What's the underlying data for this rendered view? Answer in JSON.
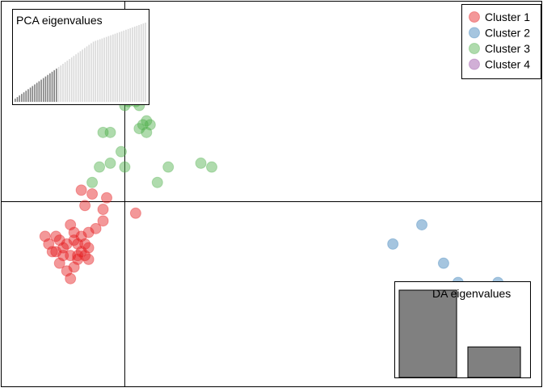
{
  "chart_data": {
    "type": "scatter",
    "subtype": "discriminant-analysis-scatterplot",
    "legend": {
      "placement": "top-right",
      "entries": [
        {
          "label": "Cluster 1",
          "color": "#E41A1C"
        },
        {
          "label": "Cluster 2",
          "color": "#377EB8"
        },
        {
          "label": "Cluster 3",
          "color": "#4DAF4A"
        },
        {
          "label": "Cluster 4",
          "color": "#984EA3"
        }
      ]
    },
    "axes_crosshair": {
      "x": 0,
      "y": 0
    },
    "xlim": [
      -3.4,
      11.5
    ],
    "ylim": [
      -4.8,
      5.2
    ],
    "series": [
      {
        "name": "Cluster 1",
        "color": "#E41A1C",
        "points": [
          [
            -1.2,
            0.3
          ],
          [
            -0.9,
            0.2
          ],
          [
            -0.5,
            0.1
          ],
          [
            -0.6,
            -0.2
          ],
          [
            -1.1,
            -0.1
          ],
          [
            0.3,
            -0.3
          ],
          [
            -0.6,
            -0.5
          ],
          [
            -1.5,
            -0.6
          ],
          [
            -1.4,
            -0.8
          ],
          [
            -1.2,
            -0.9
          ],
          [
            -1.0,
            -0.8
          ],
          [
            -0.8,
            -0.7
          ],
          [
            -1.9,
            -0.9
          ],
          [
            -2.2,
            -0.9
          ],
          [
            -2.1,
            -1.1
          ],
          [
            -1.8,
            -1.0
          ],
          [
            -1.6,
            -1.1
          ],
          [
            -1.4,
            -1.0
          ],
          [
            -1.3,
            -1.1
          ],
          [
            -1.1,
            -1.1
          ],
          [
            -1.0,
            -1.2
          ],
          [
            -1.2,
            -1.3
          ],
          [
            -1.3,
            -1.4
          ],
          [
            -1.5,
            -1.4
          ],
          [
            -1.7,
            -1.4
          ],
          [
            -1.9,
            -1.3
          ],
          [
            -1.1,
            -1.4
          ],
          [
            -1.0,
            -1.5
          ],
          [
            -1.8,
            -1.6
          ],
          [
            -1.3,
            -1.5
          ],
          [
            -1.4,
            -1.7
          ],
          [
            -1.6,
            -1.8
          ],
          [
            -1.5,
            -2.0
          ],
          [
            -2.0,
            -1.3
          ],
          [
            -1.7,
            -1.2
          ]
        ]
      },
      {
        "name": "Cluster 2",
        "color": "#377EB8",
        "points": [
          [
            8.2,
            -0.6
          ],
          [
            7.4,
            -1.1
          ],
          [
            8.8,
            -1.6
          ],
          [
            9.2,
            -2.1
          ],
          [
            10.3,
            -2.1
          ]
        ]
      },
      {
        "name": "Cluster 3",
        "color": "#4DAF4A",
        "points": [
          [
            0.5,
            2.7
          ],
          [
            0.4,
            2.5
          ],
          [
            0.6,
            2.1
          ],
          [
            0.7,
            2.0
          ],
          [
            0.5,
            2.0
          ],
          [
            0.4,
            1.9
          ],
          [
            0.6,
            1.8
          ],
          [
            0.3,
            2.6
          ],
          [
            0.1,
            2.6
          ],
          [
            0.0,
            2.5
          ],
          [
            -0.6,
            1.8
          ],
          [
            -0.4,
            1.8
          ],
          [
            -0.1,
            1.3
          ],
          [
            -0.4,
            1.0
          ],
          [
            -0.7,
            0.9
          ],
          [
            0.0,
            0.9
          ],
          [
            1.2,
            0.9
          ],
          [
            2.1,
            1.0
          ],
          [
            2.4,
            0.9
          ],
          [
            0.9,
            0.5
          ],
          [
            -0.9,
            0.5
          ]
        ]
      },
      {
        "name": "Cluster 4",
        "color": "#984EA3",
        "points": []
      }
    ],
    "insets": [
      {
        "id": "pca",
        "title": "PCA eigenvalues",
        "placement": "top-left",
        "retained": 20,
        "values": [
          4,
          6,
          8,
          10,
          12,
          14,
          16,
          18,
          20,
          22,
          24,
          26,
          28,
          30,
          32,
          34,
          36,
          38,
          40,
          42,
          44,
          46,
          48,
          50,
          52,
          54,
          56,
          58,
          60,
          62,
          64,
          66,
          68,
          70,
          72,
          74,
          76,
          77,
          78,
          79,
          80,
          81,
          82,
          83,
          84,
          85,
          86,
          87,
          88,
          89,
          90,
          91,
          92,
          93,
          94,
          95,
          96,
          97,
          98,
          99,
          100
        ]
      },
      {
        "id": "da",
        "title": "DA eigenvalues",
        "placement": "bottom-right",
        "values": [
          100,
          35
        ]
      }
    ],
    "point_opacity": 0.45,
    "colors": {
      "pca_retained": "#808080",
      "pca_dropped": "#D9D9D9",
      "da_bar": "#808080",
      "frame": "#000000"
    }
  }
}
